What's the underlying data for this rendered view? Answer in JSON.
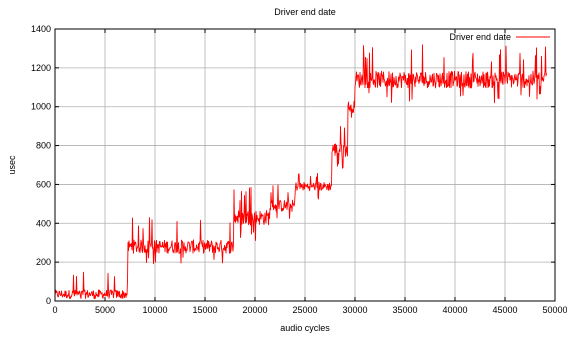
{
  "chart_data": {
    "type": "line",
    "title": "Driver end date",
    "xlabel": "audio cycles",
    "ylabel": "usec",
    "xlim": [
      0,
      50000
    ],
    "ylim": [
      0,
      1400
    ],
    "x_ticks": [
      0,
      5000,
      10000,
      15000,
      20000,
      25000,
      30000,
      35000,
      40000,
      45000,
      50000
    ],
    "y_ticks": [
      0,
      200,
      400,
      600,
      800,
      1000,
      1200,
      1400
    ],
    "grid": true,
    "legend_position": "top-right",
    "series_color": "#ff0000",
    "series": [
      {
        "name": "Driver end date",
        "segments": [
          {
            "x_start": 0,
            "x_end": 7300,
            "level": 35,
            "min": 10,
            "max": 170
          },
          {
            "x_start": 7300,
            "x_end": 17900,
            "level": 280,
            "min": 190,
            "max": 440
          },
          {
            "x_start": 17900,
            "x_end": 21500,
            "level": 430,
            "min": 310,
            "max": 590
          },
          {
            "x_start": 21500,
            "x_end": 24000,
            "level": 490,
            "min": 380,
            "max": 600
          },
          {
            "x_start": 24000,
            "x_end": 27700,
            "level": 590,
            "min": 520,
            "max": 680
          },
          {
            "x_start": 27700,
            "x_end": 29300,
            "level": 780,
            "min": 680,
            "max": 940
          },
          {
            "x_start": 29300,
            "x_end": 30000,
            "level": 1000,
            "min": 900,
            "max": 1110
          },
          {
            "x_start": 30000,
            "x_end": 49200,
            "level": 1140,
            "min": 1010,
            "max": 1320
          }
        ]
      }
    ]
  }
}
